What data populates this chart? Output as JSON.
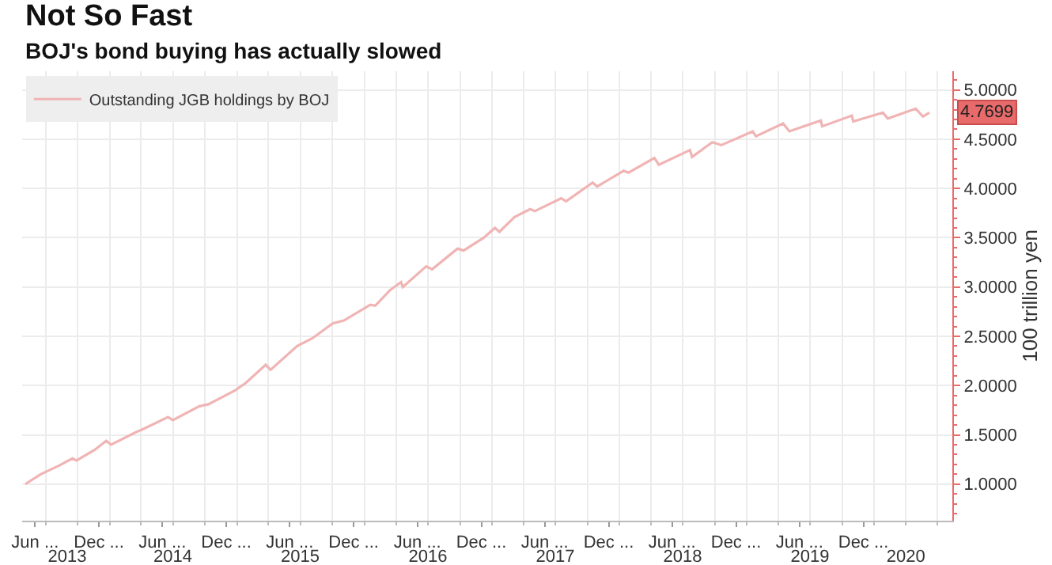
{
  "chart_data": {
    "type": "line",
    "title": "Not So Fast",
    "subtitle": "BOJ's bond buying has actually slowed",
    "y2label": "100 trillion yen",
    "x": [
      "2013-05-04",
      "2013-06-17",
      "2013-08-10",
      "2013-09-16",
      "2013-09-28",
      "2013-11-20",
      "2013-12-22",
      "2014-01-05",
      "2014-03-19",
      "2014-04-02",
      "2014-06-17",
      "2014-07-01",
      "2014-09-15",
      "2014-10-11",
      "2014-12-26",
      "2015-01-27",
      "2015-03-24",
      "2015-04-07",
      "2015-06-22",
      "2015-08-05",
      "2015-10-02",
      "2015-11-03",
      "2016-01-18",
      "2016-02-01",
      "2016-03-15",
      "2016-04-15",
      "2016-04-20",
      "2016-06-26",
      "2016-07-13",
      "2016-09-24",
      "2016-10-11",
      "2016-12-08",
      "2017-01-09",
      "2017-01-22",
      "2017-03-06",
      "2017-04-20",
      "2017-05-03",
      "2017-07-18",
      "2017-08-01",
      "2017-10-16",
      "2017-10-29",
      "2018-01-13",
      "2018-01-27",
      "2018-04-11",
      "2018-04-24",
      "2018-07-22",
      "2018-07-28",
      "2018-09-24",
      "2018-10-20",
      "2019-01-18",
      "2019-01-27",
      "2019-04-15",
      "2019-05-03",
      "2019-08-01",
      "2019-08-05",
      "2019-10-29",
      "2019-11-02",
      "2020-01-26",
      "2020-02-09",
      "2020-04-29",
      "2020-05-20",
      "2020-06-07"
    ],
    "series": [
      {
        "name": "Outstanding JGB holdings by BOJ",
        "color": "#f0b4b4",
        "axis": "y2",
        "values": [
          1.0,
          1.1,
          1.19,
          1.26,
          1.24,
          1.35,
          1.44,
          1.4,
          1.53,
          1.55,
          1.68,
          1.65,
          1.79,
          1.81,
          1.95,
          2.03,
          2.21,
          2.16,
          2.4,
          2.48,
          2.63,
          2.66,
          2.82,
          2.81,
          2.97,
          3.05,
          3.0,
          3.21,
          3.18,
          3.39,
          3.37,
          3.5,
          3.6,
          3.56,
          3.71,
          3.79,
          3.77,
          3.9,
          3.87,
          4.06,
          4.02,
          4.18,
          4.16,
          4.31,
          4.24,
          4.39,
          4.32,
          4.47,
          4.44,
          4.58,
          4.53,
          4.66,
          4.58,
          4.69,
          4.63,
          4.74,
          4.68,
          4.77,
          4.71,
          4.81,
          4.73,
          4.7699
        ],
        "value_labels": [
          null,
          null,
          null,
          null,
          null,
          null,
          null,
          null,
          null,
          null,
          null,
          null,
          null,
          null,
          null,
          null,
          null,
          null,
          null,
          null,
          null,
          null,
          null,
          null,
          null,
          null,
          null,
          null,
          null,
          null,
          null,
          null,
          null,
          null,
          null,
          null,
          null,
          null,
          null,
          null,
          null,
          null,
          null,
          null,
          null,
          null,
          null,
          null,
          null,
          null,
          null,
          null,
          null,
          null,
          null,
          null,
          null,
          null,
          null,
          null,
          null,
          "4.7699"
        ]
      }
    ],
    "xlim": [
      "2013-04-25",
      "2020-08-12"
    ],
    "xticks": [
      {
        "value": "2013-06-01",
        "label": "Jun ..."
      },
      {
        "value": "2013-12-01",
        "label": "Dec ..."
      },
      {
        "value": "2014-06-01",
        "label": "Jun ..."
      },
      {
        "value": "2014-12-01",
        "label": "Dec ..."
      },
      {
        "value": "2015-06-01",
        "label": "Jun ..."
      },
      {
        "value": "2015-12-01",
        "label": "Dec ..."
      },
      {
        "value": "2016-06-01",
        "label": "Jun ..."
      },
      {
        "value": "2016-12-01",
        "label": "Dec ..."
      },
      {
        "value": "2017-06-01",
        "label": "Jun ..."
      },
      {
        "value": "2017-12-01",
        "label": "Dec ..."
      },
      {
        "value": "2018-06-01",
        "label": "Jun ..."
      },
      {
        "value": "2018-12-01",
        "label": "Dec ..."
      },
      {
        "value": "2019-06-01",
        "label": "Jun ..."
      },
      {
        "value": "2019-12-01",
        "label": "Dec ..."
      }
    ],
    "x2lim": [
      "2013-04-25",
      "2020-08-12"
    ],
    "x2ticks": [
      {
        "value": "2013-09-01",
        "label": "2013"
      },
      {
        "value": "2014-07-01",
        "label": "2014"
      },
      {
        "value": "2015-07-01",
        "label": "2015"
      },
      {
        "value": "2016-07-01",
        "label": "2016"
      },
      {
        "value": "2017-07-01",
        "label": "2017"
      },
      {
        "value": "2018-07-01",
        "label": "2018"
      },
      {
        "value": "2019-07-01",
        "label": "2019"
      },
      {
        "value": "2020-04-01",
        "label": "2020"
      }
    ],
    "y2lim": [
      0.63,
      5.19
    ],
    "y2ticks": [
      {
        "value": 1.0,
        "label": "1.0000"
      },
      {
        "value": 1.5,
        "label": "1.5000"
      },
      {
        "value": 2.0,
        "label": "2.0000"
      },
      {
        "value": 2.5,
        "label": "2.5000"
      },
      {
        "value": 3.0,
        "label": "3.0000"
      },
      {
        "value": 3.5,
        "label": "3.5000"
      },
      {
        "value": 4.0,
        "label": "4.0000"
      },
      {
        "value": 4.5,
        "label": "4.5000"
      },
      {
        "value": 5.0,
        "label": "5.0000"
      }
    ],
    "grid": true,
    "legend": "top left",
    "marker": "none",
    "line_style": "solid"
  }
}
